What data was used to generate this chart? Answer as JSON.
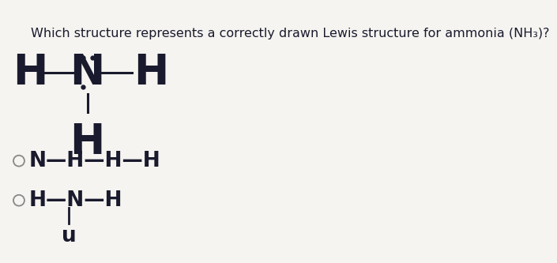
{
  "background_color": "#f5f4f0",
  "question_text": "Which structure represents a correctly drawn Lewis structure for ammonia (NH₃)?",
  "question_fontsize": 11.5,
  "question_color": "#1a1a2e",
  "struct1_fontsize": 38,
  "struct1_color": "#1a1a2e",
  "struct2_fontsize": 19,
  "struct2_color": "#1a1a2e",
  "struct3_fontsize": 19,
  "struct3_color": "#1a1a2e"
}
